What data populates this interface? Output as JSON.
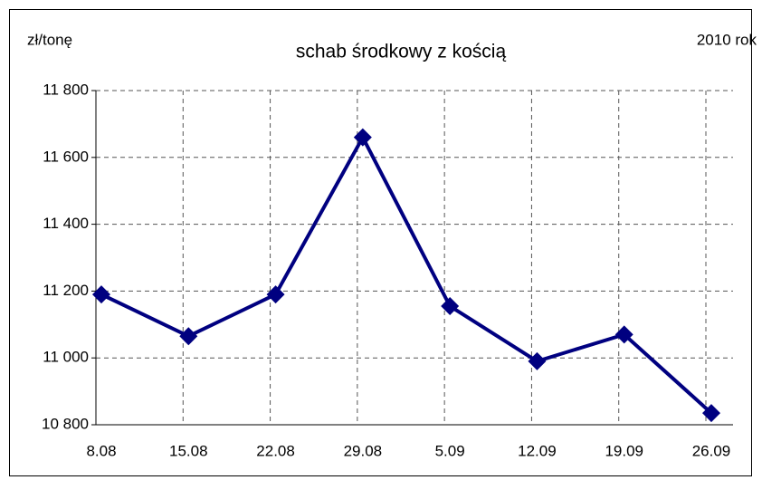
{
  "chart_data": {
    "type": "line",
    "title": "schab środkowy z kością",
    "y_label": "zł/tonę",
    "annotation": "2010 rok",
    "categories": [
      "8.08",
      "15.08",
      "22.08",
      "29.08",
      "5.09",
      "12.09",
      "19.09",
      "26.09"
    ],
    "series": [
      {
        "name": "schab środkowy z kością",
        "color": "#000080",
        "values": [
          11190,
          11065,
          11190,
          11660,
          11155,
          10990,
          11070,
          10835
        ]
      }
    ],
    "ylim": [
      10800,
      11800
    ],
    "yticks": [
      {
        "value": 10800,
        "label": "10 800"
      },
      {
        "value": 11000,
        "label": "11 000"
      },
      {
        "value": 11200,
        "label": "11 200"
      },
      {
        "value": 11400,
        "label": "11 400"
      },
      {
        "value": 11600,
        "label": "11 600"
      },
      {
        "value": 11800,
        "label": "11 800"
      }
    ],
    "grid": true
  }
}
